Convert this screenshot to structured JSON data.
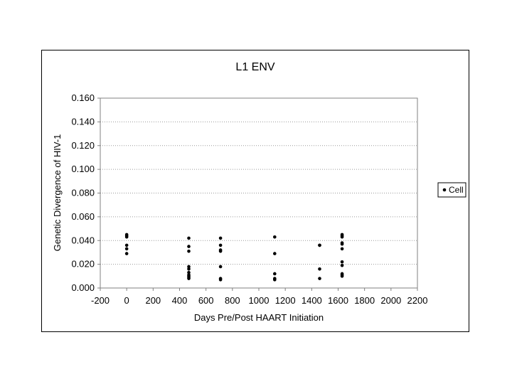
{
  "chart_data": {
    "type": "scatter",
    "title": "L1  ENV",
    "xlabel": "Days  Pre/Post  HAART  Initiation",
    "ylabel": "Genetic  Divergence  of  HIV-1",
    "xlim": [
      -200,
      2200
    ],
    "ylim": [
      0,
      0.16
    ],
    "xticks": [
      -200,
      0,
      200,
      400,
      600,
      800,
      1000,
      1200,
      1400,
      1600,
      1800,
      2000,
      2200
    ],
    "yticks": [
      "0.000",
      "0.020",
      "0.040",
      "0.060",
      "0.080",
      "0.100",
      "0.120",
      "0.140",
      "0.160"
    ],
    "grid": "horizontal dotted",
    "legend_position": "right",
    "series": [
      {
        "name": "Cell",
        "color": "#000000",
        "points": [
          [
            0,
            0.045
          ],
          [
            0,
            0.044
          ],
          [
            0,
            0.043
          ],
          [
            0,
            0.036
          ],
          [
            0,
            0.033
          ],
          [
            0,
            0.029
          ],
          [
            470,
            0.042
          ],
          [
            470,
            0.035
          ],
          [
            470,
            0.031
          ],
          [
            470,
            0.018
          ],
          [
            470,
            0.016
          ],
          [
            470,
            0.013
          ],
          [
            470,
            0.011
          ],
          [
            470,
            0.01
          ],
          [
            470,
            0.009
          ],
          [
            470,
            0.008
          ],
          [
            710,
            0.042
          ],
          [
            710,
            0.036
          ],
          [
            710,
            0.032
          ],
          [
            710,
            0.031
          ],
          [
            710,
            0.018
          ],
          [
            710,
            0.008
          ],
          [
            710,
            0.007
          ],
          [
            1120,
            0.043
          ],
          [
            1120,
            0.029
          ],
          [
            1120,
            0.012
          ],
          [
            1120,
            0.008
          ],
          [
            1120,
            0.007
          ],
          [
            1460,
            0.036
          ],
          [
            1460,
            0.036
          ],
          [
            1460,
            0.016
          ],
          [
            1460,
            0.008
          ],
          [
            1630,
            0.045
          ],
          [
            1630,
            0.044
          ],
          [
            1630,
            0.043
          ],
          [
            1630,
            0.038
          ],
          [
            1630,
            0.037
          ],
          [
            1630,
            0.033
          ],
          [
            1630,
            0.022
          ],
          [
            1630,
            0.019
          ],
          [
            1630,
            0.012
          ],
          [
            1630,
            0.011
          ],
          [
            1630,
            0.01
          ]
        ]
      }
    ]
  }
}
